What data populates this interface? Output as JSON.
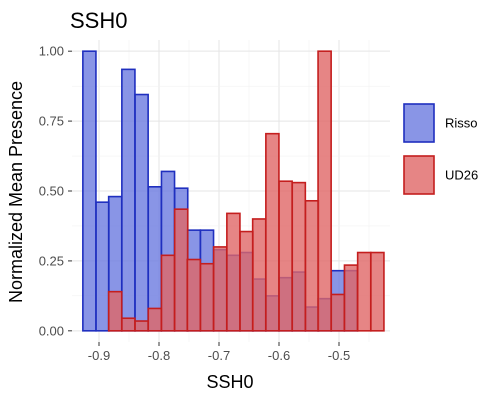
{
  "chart_data": {
    "type": "bar",
    "title": "SSH0",
    "xlabel": "SSH0",
    "ylabel": "Normalized Mean Presence",
    "xlim": [
      -0.945,
      -0.415
    ],
    "ylim": [
      -0.04,
      1.04
    ],
    "x_ticks": [
      -0.9,
      -0.8,
      -0.7,
      -0.6,
      -0.5
    ],
    "x_tick_labels": [
      "-0.9",
      "-0.8",
      "-0.7",
      "-0.6",
      "-0.5"
    ],
    "y_ticks": [
      0,
      0.25,
      0.5,
      0.75,
      1.0
    ],
    "y_tick_labels": [
      "0.00",
      "0.25",
      "0.50",
      "0.75",
      "1.00"
    ],
    "bin_width": 0.0218,
    "grid": true,
    "legend_position": "right",
    "series": [
      {
        "name": "Risso",
        "fill": "#6b7be0",
        "stroke": "#1f2fbf",
        "x": [
          -0.916,
          -0.894,
          -0.873,
          -0.851,
          -0.829,
          -0.807,
          -0.785,
          -0.763,
          -0.742,
          -0.72,
          -0.698,
          -0.676,
          -0.654,
          -0.633,
          -0.611,
          -0.589,
          -0.567,
          -0.545,
          -0.524,
          -0.502,
          -0.48
        ],
        "values": [
          1.0,
          0.46,
          0.48,
          0.935,
          0.845,
          0.515,
          0.57,
          0.51,
          0.36,
          0.36,
          0.29,
          0.27,
          0.28,
          0.185,
          0.125,
          0.19,
          0.21,
          0.085,
          0.115,
          0.215,
          0.215
        ]
      },
      {
        "name": "UD26",
        "fill": "#e06666",
        "stroke": "#c41e1e",
        "x": [
          -0.873,
          -0.851,
          -0.829,
          -0.807,
          -0.785,
          -0.763,
          -0.742,
          -0.72,
          -0.698,
          -0.676,
          -0.654,
          -0.633,
          -0.611,
          -0.589,
          -0.567,
          -0.545,
          -0.524,
          -0.502,
          -0.48,
          -0.458,
          -0.436
        ],
        "values": [
          0.14,
          0.045,
          0.035,
          0.08,
          0.27,
          0.435,
          0.255,
          0.24,
          0.3,
          0.42,
          0.355,
          0.4,
          0.705,
          0.535,
          0.53,
          0.465,
          1.0,
          0.13,
          0.235,
          0.28,
          0.28
        ]
      }
    ]
  }
}
